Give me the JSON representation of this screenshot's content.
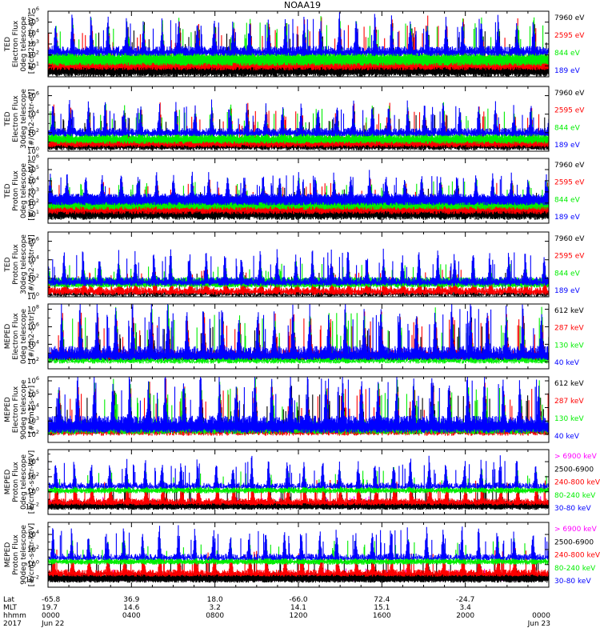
{
  "chart_data": {
    "type": "line",
    "title": "NOAA19",
    "panels": [
      {
        "ylabel": [
          "TED",
          "Electron Flux",
          "0deg telescope",
          "[#/cm2-s-str-eV]"
        ],
        "yticks": [
          {
            "label": "10",
            "exp": "1"
          },
          {
            "label": "10",
            "exp": "2"
          },
          {
            "label": "10",
            "exp": "3"
          },
          {
            "label": "10",
            "exp": "4"
          },
          {
            "label": "10",
            "exp": "5"
          },
          {
            "label": "10",
            "exp": "6"
          }
        ],
        "ylog": [
          0,
          6
        ],
        "series": [
          {
            "name": "7960 eV",
            "color": "#000000",
            "base": 1.0,
            "peak": 4.3,
            "floor": 0.0
          },
          {
            "name": "2595 eV",
            "color": "#ff0000",
            "base": 1.4,
            "peak": 4.8,
            "floor": 0.6
          },
          {
            "name": "844 eV",
            "color": "#00ee00",
            "base": 1.8,
            "peak": 5.0,
            "floor": 1.0
          },
          {
            "name": "189 eV",
            "color": "#0000ff",
            "base": 2.3,
            "peak": 5.3,
            "floor": 1.9
          }
        ]
      },
      {
        "ylabel": [
          "TED",
          "Electron Flux",
          "30deg telescope",
          "[#/cm2-s-str-eV]"
        ],
        "yticks": [
          {
            "label": "10",
            "exp": "0"
          },
          {
            "label": "10",
            "exp": "2"
          },
          {
            "label": "10",
            "exp": "4"
          },
          {
            "label": "10",
            "exp": "6"
          }
        ],
        "ylog": [
          0,
          7
        ],
        "series": [
          {
            "name": "7960 eV",
            "color": "#000000",
            "base": 0.6,
            "peak": 4.0,
            "floor": 0.1
          },
          {
            "name": "2595 eV",
            "color": "#ff0000",
            "base": 1.0,
            "peak": 4.4,
            "floor": 0.4
          },
          {
            "name": "844 eV",
            "color": "#00ee00",
            "base": 1.4,
            "peak": 4.6,
            "floor": 0.8
          },
          {
            "name": "189 eV",
            "color": "#0000ff",
            "base": 2.0,
            "peak": 5.0,
            "floor": 1.6
          }
        ]
      },
      {
        "ylabel": [
          "TED",
          "Proton Flux",
          "0deg telescope",
          "[#/cm2-s-str-eV]"
        ],
        "yticks": [
          {
            "label": "10",
            "exp": "1"
          },
          {
            "label": "10",
            "exp": "2"
          },
          {
            "label": "10",
            "exp": "3"
          },
          {
            "label": "10",
            "exp": "4"
          },
          {
            "label": "10",
            "exp": "5"
          },
          {
            "label": "10",
            "exp": "6"
          }
        ],
        "ylog": [
          0.2,
          6
        ],
        "series": [
          {
            "name": "7960 eV",
            "color": "#000000",
            "base": 1.3,
            "peak": 3.4,
            "floor": 0.5
          },
          {
            "name": "2595 eV",
            "color": "#ff0000",
            "base": 1.8,
            "peak": 3.8,
            "floor": 1.0
          },
          {
            "name": "844 eV",
            "color": "#00ee00",
            "base": 2.2,
            "peak": 4.0,
            "floor": 1.4
          },
          {
            "name": "189 eV",
            "color": "#0000ff",
            "base": 2.5,
            "peak": 4.5,
            "floor": 1.8
          }
        ]
      },
      {
        "ylabel": [
          "TED",
          "Proton Flux",
          "30deg telescope",
          "[#/cm2-s-str-eV]"
        ],
        "yticks": [
          {
            "label": "10",
            "exp": "0"
          },
          {
            "label": "10",
            "exp": "2"
          },
          {
            "label": "10",
            "exp": "4"
          },
          {
            "label": "10",
            "exp": "6"
          }
        ],
        "ylog": [
          0,
          7
        ],
        "series": [
          {
            "name": "7960 eV",
            "color": "#000000",
            "base": 0.2,
            "peak": 2.6,
            "floor": 0.0
          },
          {
            "name": "2595 eV",
            "color": "#ff0000",
            "base": 0.6,
            "peak": 3.0,
            "floor": 0.2
          },
          {
            "name": "844 eV",
            "color": "#00ee00",
            "base": 1.8,
            "peak": 3.6,
            "floor": 1.0
          },
          {
            "name": "189 eV",
            "color": "#0000ff",
            "base": 1.6,
            "peak": 4.8,
            "floor": 1.2
          }
        ]
      },
      {
        "ylabel": [
          "MEPED",
          "Electron Flux",
          "0deg telescope",
          "[#/cm2-s-str]"
        ],
        "yticks": [
          {
            "label": "10",
            "exp": "2"
          },
          {
            "label": "10",
            "exp": "4"
          },
          {
            "label": "10",
            "exp": "6"
          },
          {
            "label": "10",
            "exp": "8"
          }
        ],
        "ylog": [
          1.2,
          8.6
        ],
        "series": [
          {
            "name": "612 keV",
            "color": "#000000",
            "base": 2.4,
            "peak": 6.2,
            "floor": 2.1
          },
          {
            "name": "287 keV",
            "color": "#ff0000",
            "base": 2.6,
            "peak": 7.0,
            "floor": 2.3
          },
          {
            "name": "130 keV",
            "color": "#00ee00",
            "base": 1.9,
            "peak": 7.6,
            "floor": 1.8
          },
          {
            "name": "40 keV",
            "color": "#0000ff",
            "base": 2.9,
            "peak": 8.2,
            "floor": 2.2
          }
        ]
      },
      {
        "ylabel": [
          "MEPED",
          "Electron Flux",
          "90deg telescope",
          "[#/cm2-s-str]"
        ],
        "yticks": [
          {
            "label": "10",
            "exp": "2"
          },
          {
            "label": "10",
            "exp": "3"
          },
          {
            "label": "10",
            "exp": "4"
          },
          {
            "label": "10",
            "exp": "5"
          },
          {
            "label": "10",
            "exp": "6"
          }
        ],
        "ylog": [
          1.4,
          6.3
        ],
        "series": [
          {
            "name": "612 keV",
            "color": "#000000",
            "base": 2.4,
            "peak": 5.0,
            "floor": 2.0
          },
          {
            "name": "287 keV",
            "color": "#ff0000",
            "base": 2.2,
            "peak": 5.4,
            "floor": 1.9
          },
          {
            "name": "130 keV",
            "color": "#00ee00",
            "base": 2.5,
            "peak": 5.6,
            "floor": 2.0
          },
          {
            "name": "40 keV",
            "color": "#0000ff",
            "base": 2.8,
            "peak": 6.2,
            "floor": 2.1
          }
        ]
      },
      {
        "ylabel": [
          "MEPED",
          "Proton Flux",
          "0deg telescope",
          "[#/cm2-s-str-keV]"
        ],
        "yticks": [
          {
            "label": "10",
            "exp": "-2"
          },
          {
            "label": "10",
            "exp": "0"
          },
          {
            "label": "10",
            "exp": "2"
          },
          {
            "label": "10",
            "exp": "4"
          }
        ],
        "ylog": [
          -3,
          5.6
        ],
        "series": [
          {
            "name": "> 6900 keV",
            "color": "#ff00ff",
            "base": -1.8,
            "peak": -0.6,
            "floor": -2.2
          },
          {
            "name": "2500-6900",
            "color": "#000000",
            "base": -1.6,
            "peak": 1.2,
            "floor": -2.4
          },
          {
            "name": "240-800 keV",
            "color": "#ff0000",
            "base": -1.4,
            "peak": 1.6,
            "floor": -1.8
          },
          {
            "name": "80-240 keV",
            "color": "#00ee00",
            "base": 0.2,
            "peak": 2.8,
            "floor": -0.2
          },
          {
            "name": "30-80 keV",
            "color": "#0000ff",
            "base": 0.6,
            "peak": 4.2,
            "floor": 0.4
          }
        ]
      },
      {
        "ylabel": [
          "MEPED",
          "Proton Flux",
          "90deg telescope",
          "[#/cm2-s-str-keV]"
        ],
        "yticks": [
          {
            "label": "10",
            "exp": "-2"
          },
          {
            "label": "10",
            "exp": "0"
          },
          {
            "label": "10",
            "exp": "2"
          },
          {
            "label": "10",
            "exp": "4"
          }
        ],
        "ylog": [
          -3,
          5.6
        ],
        "series": [
          {
            "name": "> 6900 keV",
            "color": "#ff00ff",
            "base": -1.8,
            "peak": -0.5,
            "floor": -2.2
          },
          {
            "name": "2500-6900",
            "color": "#000000",
            "base": -1.5,
            "peak": 1.4,
            "floor": -2.4
          },
          {
            "name": "240-800 keV",
            "color": "#ff0000",
            "base": -1.2,
            "peak": 2.0,
            "floor": -1.6
          },
          {
            "name": "80-240 keV",
            "color": "#00ee00",
            "base": 0.4,
            "peak": 3.2,
            "floor": 0.0
          },
          {
            "name": "30-80 keV",
            "color": "#0000ff",
            "base": 0.8,
            "peak": 4.6,
            "floor": 0.6
          }
        ]
      }
    ],
    "x_axis": {
      "row_labels": [
        "Lat",
        "MLT",
        "hhmm",
        "2017"
      ],
      "columns": [
        {
          "t": 0,
          "lat": "-65.8",
          "mlt": "19.7",
          "hhmm": "0000",
          "date": "Jun 22"
        },
        {
          "t": 4,
          "lat": "36.9",
          "mlt": "14.6",
          "hhmm": "0400",
          "date": ""
        },
        {
          "t": 8,
          "lat": "18.0",
          "mlt": "3.2",
          "hhmm": "0800",
          "date": ""
        },
        {
          "t": 12,
          "lat": "-66.0",
          "mlt": "14.1",
          "hhmm": "1200",
          "date": ""
        },
        {
          "t": 16,
          "lat": "72.4",
          "mlt": "15.1",
          "hhmm": "1600",
          "date": ""
        },
        {
          "t": 20,
          "lat": "-24.7",
          "mlt": "3.4",
          "hhmm": "2000",
          "date": ""
        },
        {
          "t": 24,
          "lat": "",
          "mlt": "",
          "hhmm": "0000",
          "date": "Jun 23"
        }
      ],
      "range_hours": [
        0,
        24
      ],
      "orbit_period_hours": 1.7
    }
  }
}
